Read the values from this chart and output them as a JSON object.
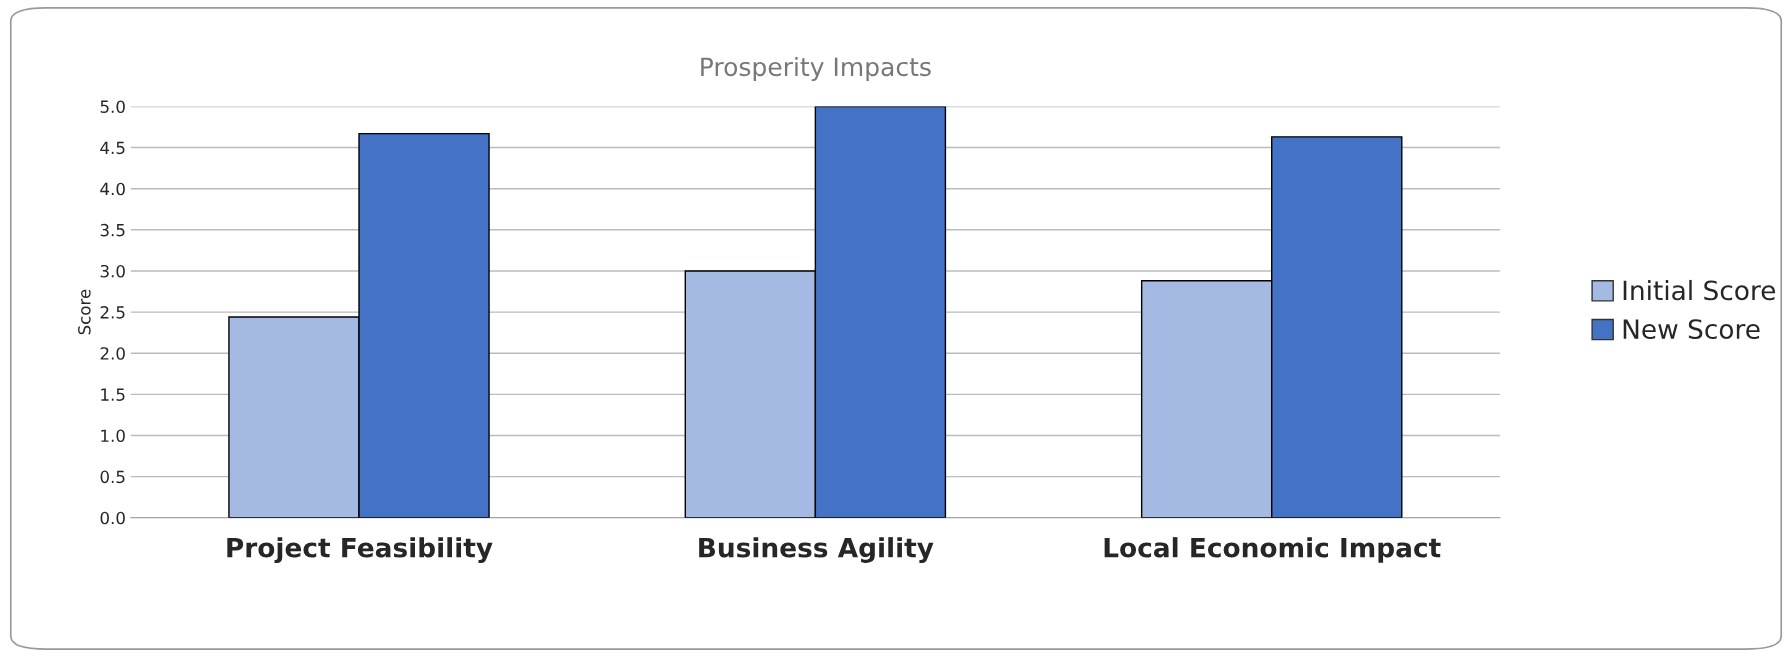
{
  "chart_data": {
    "type": "bar",
    "title": "Prosperity Impacts",
    "ylabel": "Score",
    "categories": [
      "Project Feasibility",
      "Business Agility",
      "Local Economic Impact"
    ],
    "series": [
      {
        "name": "Initial Score",
        "color": "#a4bae2",
        "values": [
          2.44,
          3.0,
          2.88
        ]
      },
      {
        "name": "New Score",
        "color": "#4472c4",
        "values": [
          4.67,
          5.0,
          4.63
        ]
      }
    ],
    "ylim": [
      0,
      5
    ],
    "yticks": [
      {
        "value": 0,
        "label": "0.0"
      },
      {
        "value": 0.5,
        "label": "0.5"
      },
      {
        "value": 1,
        "label": "1.0"
      },
      {
        "value": 1.5,
        "label": "1.5"
      },
      {
        "value": 2,
        "label": "2.0"
      },
      {
        "value": 2.5,
        "label": "2.5"
      },
      {
        "value": 3,
        "label": "3.0"
      },
      {
        "value": 3.5,
        "label": "3.5"
      },
      {
        "value": 4,
        "label": "4.0"
      },
      {
        "value": 4.5,
        "label": "4.5"
      },
      {
        "value": 5,
        "label": "5.0"
      }
    ],
    "grid": "y",
    "legend": "right"
  }
}
